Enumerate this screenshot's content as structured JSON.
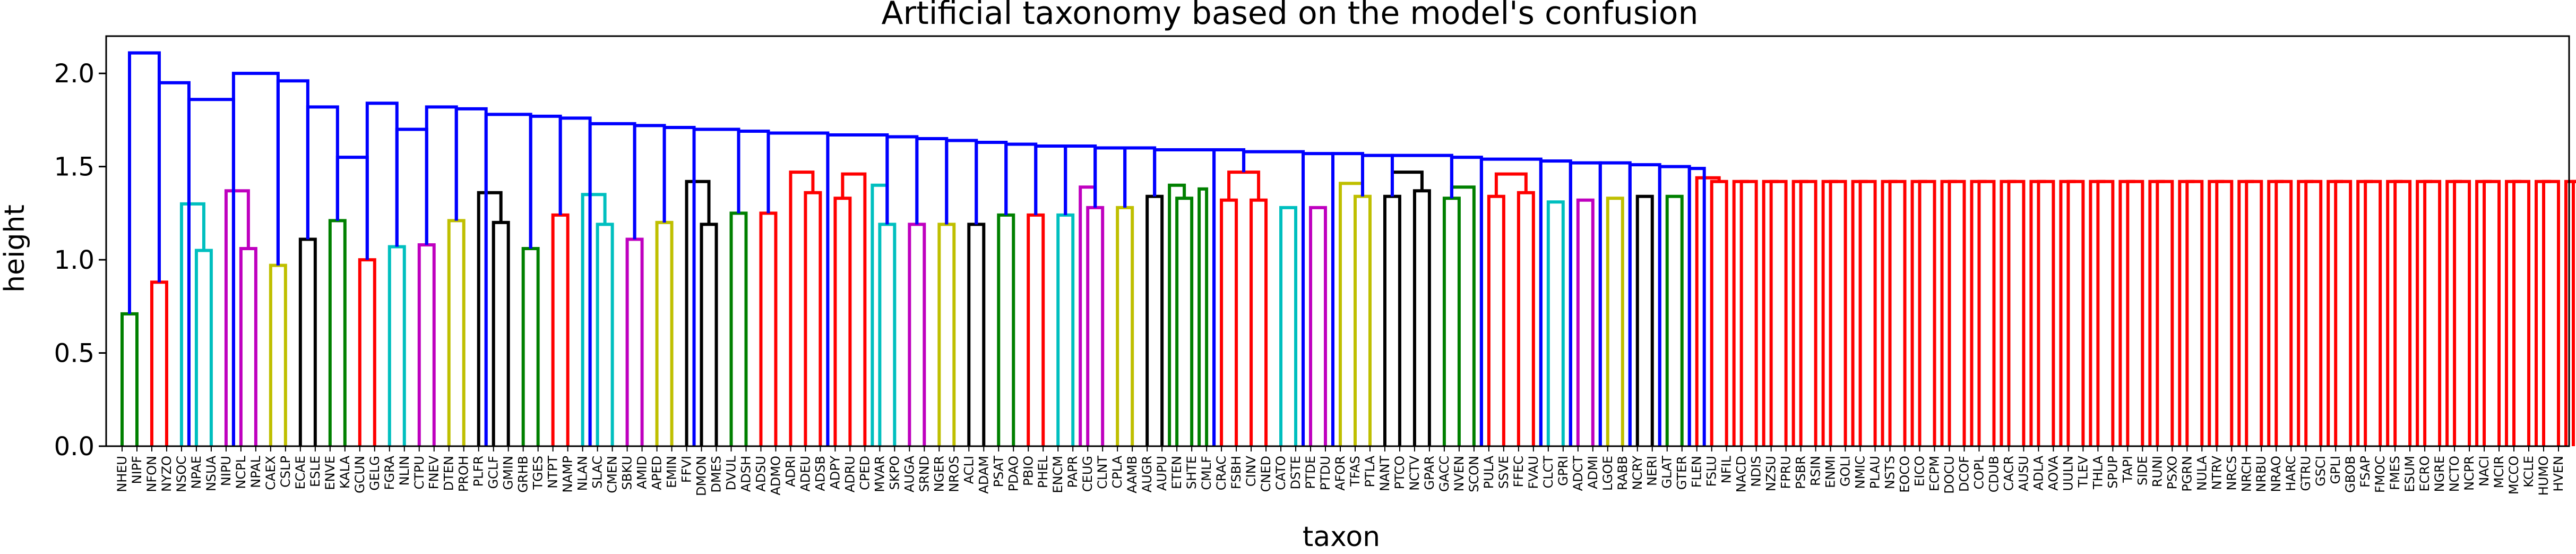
{
  "chart_data": {
    "type": "dendrogram",
    "title": "Artificial taxonomy based on the model's confusion",
    "xlabel": "taxon",
    "ylabel": "height",
    "ylim": [
      0,
      2.2
    ],
    "yticks": [
      "0.0",
      "0.5",
      "1.0",
      "1.5",
      "2.0"
    ],
    "colors": {
      "above_threshold": "#0000ff",
      "clusters": [
        "#008000",
        "#ff0000",
        "#00bfbf",
        "#bf00bf",
        "#bfbf00",
        "#000000"
      ]
    },
    "leaves": [
      "NHEU",
      "NIPF",
      "NFON",
      "NYZO",
      "NSOC",
      "NPAE",
      "NSUA",
      "NIPU",
      "NCPL",
      "NPAL",
      "CAEX",
      "CSLP",
      "ECAE",
      "ESLE",
      "ENVE",
      "KALA",
      "GCUN",
      "GELG",
      "FGRA",
      "NLIN",
      "CTPU",
      "FNEV",
      "DTEN",
      "PROH",
      "PLFR",
      "GCLF",
      "GMIN",
      "GRHB",
      "TGES",
      "NTPT",
      "NAMP",
      "NLAN",
      "SLAC",
      "CMEN",
      "SBKU",
      "AMID",
      "APED",
      "EMIN",
      "FFVI",
      "DMON",
      "DMES",
      "DVUL",
      "ADSH",
      "ADSU",
      "ADMO",
      "ADRI",
      "ADEU",
      "ADSB",
      "ADPY",
      "ADRU",
      "CPED",
      "MVAR",
      "SKPO",
      "AUGA",
      "SRND",
      "NGER",
      "NROS",
      "ACLI",
      "ADAM",
      "PSAT",
      "PDAO",
      "PBIO",
      "PHEL",
      "ENCM",
      "PAPR",
      "CEUG",
      "CLNT",
      "CPLA",
      "AAMB",
      "AUGR",
      "AUPU",
      "ETEN",
      "SHTE",
      "CMLF",
      "CRAC",
      "FSBH",
      "CINV",
      "CNED",
      "CATO",
      "DSTE",
      "PTDE",
      "PTDU",
      "AFOR",
      "TFAS",
      "PTLA",
      "NANT",
      "PTCO",
      "NCTV",
      "GPAR",
      "GACC",
      "NVEN",
      "SCON",
      "PULA",
      "SSVE",
      "FFEC",
      "FVAU",
      "CLCT",
      "GPRI",
      "ADCT",
      "ADMI",
      "LGOE",
      "RABB",
      "NCRY",
      "NERI",
      "GLAT",
      "GTER",
      "FLEN",
      "FSLU",
      "NFIL",
      "NACD",
      "NDIS",
      "NZSU",
      "FPRU",
      "PSBR",
      "RSIN",
      "ENMI",
      "GOLI",
      "NMIC",
      "PLAU",
      "NSTS",
      "EOCO",
      "EICO",
      "ECPM",
      "DOCU",
      "DCOF",
      "COPL",
      "CDUB",
      "CACR",
      "AUSU",
      "ADLA",
      "AOVA",
      "UULN",
      "TLEV",
      "THLA",
      "SPUP",
      "TAPI",
      "SIDE",
      "RUNI",
      "PSXO",
      "PGRN",
      "NULA",
      "NTRV",
      "NRCS",
      "NRCH",
      "NRBU",
      "NRAO",
      "HARC",
      "GTRU",
      "GSCI",
      "GPLI",
      "GBOB",
      "FSAP",
      "FMOC",
      "FMES",
      "ESUM",
      "ECRO",
      "NGRE",
      "NCTO",
      "NCPR",
      "NACI",
      "MCIR",
      "MCCO",
      "KCLE",
      "HUMO",
      "HVEN"
    ],
    "links": [
      {
        "l": 0,
        "r": 1,
        "h": 0.71,
        "c": 0
      },
      {
        "l": 2,
        "r": 3,
        "h": 0.88,
        "c": 1
      },
      {
        "l": 5,
        "r": 6,
        "h": 1.05,
        "c": 2
      },
      {
        "l": 4,
        "r": 5.5,
        "h": 1.3,
        "c": 2
      },
      {
        "l": 8,
        "r": 9,
        "h": 1.06,
        "c": 3
      },
      {
        "l": 7,
        "r": 8.5,
        "h": 1.37,
        "c": 3
      },
      {
        "l": 10,
        "r": 11,
        "h": 0.97,
        "c": 4
      },
      {
        "l": 12,
        "r": 13,
        "h": 1.11,
        "c": 5
      },
      {
        "l": 14,
        "r": 15,
        "h": 1.21,
        "c": 0
      },
      {
        "l": 16,
        "r": 17,
        "h": 1.0,
        "c": 1
      },
      {
        "l": 18,
        "r": 19,
        "h": 1.07,
        "c": 2
      },
      {
        "l": 20,
        "r": 21,
        "h": 1.08,
        "c": 3
      },
      {
        "l": 22,
        "r": 23,
        "h": 1.21,
        "c": 4
      },
      {
        "l": 25,
        "r": 26,
        "h": 1.2,
        "c": 5
      },
      {
        "l": 24,
        "r": 25.5,
        "h": 1.36,
        "c": 5
      },
      {
        "l": 27,
        "r": 28,
        "h": 1.06,
        "c": 0
      },
      {
        "l": 29,
        "r": 30,
        "h": 1.24,
        "c": 1
      },
      {
        "l": 32,
        "r": 33,
        "h": 1.19,
        "c": 2
      },
      {
        "l": 31,
        "r": 32.5,
        "h": 1.35,
        "c": 2
      },
      {
        "l": 34,
        "r": 35,
        "h": 1.11,
        "c": 3
      },
      {
        "l": 36,
        "r": 37,
        "h": 1.2,
        "c": 4
      },
      {
        "l": 39,
        "r": 40,
        "h": 1.19,
        "c": 5
      },
      {
        "l": 38,
        "r": 39.5,
        "h": 1.42,
        "c": 5
      },
      {
        "l": 41,
        "r": 42,
        "h": 1.25,
        "c": 0
      },
      {
        "l": 43,
        "r": 44,
        "h": 1.25,
        "c": 1
      },
      {
        "l": 46,
        "r": 47,
        "h": 1.36,
        "c": 1
      },
      {
        "l": 45,
        "r": 46.5,
        "h": 1.47,
        "c": 1
      },
      {
        "l": 48,
        "r": 49,
        "h": 1.33,
        "c": 1
      },
      {
        "l": 48.5,
        "r": 50,
        "h": 1.46,
        "c": 1
      },
      {
        "l": 51,
        "r": 52,
        "h": 1.19,
        "c": 2
      },
      {
        "l": 50.5,
        "r": 51.5,
        "h": 1.4,
        "c": 2
      },
      {
        "l": 53,
        "r": 54,
        "h": 1.19,
        "c": 3
      },
      {
        "l": 55,
        "r": 56,
        "h": 1.19,
        "c": 4
      },
      {
        "l": 57,
        "r": 58,
        "h": 1.19,
        "c": 5
      },
      {
        "l": 59,
        "r": 60,
        "h": 1.24,
        "c": 0
      },
      {
        "l": 61,
        "r": 62,
        "h": 1.24,
        "c": 1
      },
      {
        "l": 63,
        "r": 64,
        "h": 1.24,
        "c": 2
      },
      {
        "l": 65,
        "r": 66,
        "h": 1.28,
        "c": 3
      },
      {
        "l": 64.5,
        "r": 65.5,
        "h": 1.39,
        "c": 3
      },
      {
        "l": 67,
        "r": 68,
        "h": 1.28,
        "c": 4
      },
      {
        "l": 69,
        "r": 70,
        "h": 1.34,
        "c": 5
      },
      {
        "l": 71,
        "r": 72,
        "h": 1.33,
        "c": 0
      },
      {
        "l": 72.5,
        "r": 73,
        "h": 1.38,
        "c": 0
      },
      {
        "l": 70.5,
        "r": 71.5,
        "h": 1.4,
        "c": 0
      },
      {
        "l": 74,
        "r": 75,
        "h": 1.32,
        "c": 1
      },
      {
        "l": 76,
        "r": 77,
        "h": 1.32,
        "c": 1
      },
      {
        "l": 74.5,
        "r": 76.5,
        "h": 1.47,
        "c": 1
      },
      {
        "l": 78,
        "r": 79,
        "h": 1.28,
        "c": 2
      },
      {
        "l": 80,
        "r": 81,
        "h": 1.28,
        "c": 3
      },
      {
        "l": 83,
        "r": 84,
        "h": 1.34,
        "c": 4
      },
      {
        "l": 82,
        "r": 83.5,
        "h": 1.41,
        "c": 4
      },
      {
        "l": 85,
        "r": 86,
        "h": 1.34,
        "c": 5
      },
      {
        "l": 87,
        "r": 88,
        "h": 1.37,
        "c": 5
      },
      {
        "l": 85.5,
        "r": 87.5,
        "h": 1.47,
        "c": 5
      },
      {
        "l": 89,
        "r": 90,
        "h": 1.33,
        "c": 0
      },
      {
        "l": 89.5,
        "r": 91,
        "h": 1.39,
        "c": 0
      },
      {
        "l": 92,
        "r": 93,
        "h": 1.34,
        "c": 1
      },
      {
        "l": 94,
        "r": 95,
        "h": 1.36,
        "c": 1
      },
      {
        "l": 92.5,
        "r": 94.5,
        "h": 1.46,
        "c": 1
      },
      {
        "l": 96,
        "r": 97,
        "h": 1.31,
        "c": 2
      },
      {
        "l": 98,
        "r": 99,
        "h": 1.32,
        "c": 3
      },
      {
        "l": 100,
        "r": 101,
        "h": 1.33,
        "c": 4
      },
      {
        "l": 102,
        "r": 103,
        "h": 1.34,
        "c": 5
      },
      {
        "l": 104,
        "r": 105,
        "h": 1.34,
        "c": 0
      },
      {
        "l": 107,
        "r": 108,
        "h": 1.42,
        "c": 1
      },
      {
        "l": 109,
        "r": 110,
        "h": 1.42,
        "c": 1
      },
      {
        "l": 108.5,
        "r": 109.5,
        "h": 1.42,
        "c": 1
      },
      {
        "l": 111,
        "r": 112,
        "h": 1.42,
        "c": 1
      },
      {
        "l": 110.5,
        "r": 111.5,
        "h": 1.42,
        "c": 1
      },
      {
        "l": 113,
        "r": 114,
        "h": 1.42,
        "c": 1
      },
      {
        "l": 112.5,
        "r": 113.5,
        "h": 1.42,
        "c": 1
      },
      {
        "l": 115,
        "r": 116,
        "h": 1.42,
        "c": 1
      },
      {
        "l": 114.5,
        "r": 115.5,
        "h": 1.42,
        "c": 1
      },
      {
        "l": 117,
        "r": 118,
        "h": 1.42,
        "c": 1
      },
      {
        "l": 116.5,
        "r": 117.5,
        "h": 1.42,
        "c": 1
      },
      {
        "l": 119,
        "r": 120,
        "h": 1.42,
        "c": 1
      },
      {
        "l": 118.5,
        "r": 119.5,
        "h": 1.42,
        "c": 1
      },
      {
        "l": 121,
        "r": 122,
        "h": 1.42,
        "c": 1
      },
      {
        "l": 120.5,
        "r": 121.5,
        "h": 1.42,
        "c": 1
      },
      {
        "l": 123,
        "r": 124,
        "h": 1.42,
        "c": 1
      },
      {
        "l": 122.5,
        "r": 123.5,
        "h": 1.42,
        "c": 1
      },
      {
        "l": 125,
        "r": 126,
        "h": 1.42,
        "c": 1
      },
      {
        "l": 124.5,
        "r": 125.5,
        "h": 1.42,
        "c": 1
      },
      {
        "l": 127,
        "r": 128,
        "h": 1.42,
        "c": 1
      },
      {
        "l": 126.5,
        "r": 127.5,
        "h": 1.42,
        "c": 1
      },
      {
        "l": 129,
        "r": 130,
        "h": 1.42,
        "c": 1
      },
      {
        "l": 128.5,
        "r": 129.5,
        "h": 1.42,
        "c": 1
      },
      {
        "l": 131,
        "r": 132,
        "h": 1.42,
        "c": 1
      },
      {
        "l": 130.5,
        "r": 131.5,
        "h": 1.42,
        "c": 1
      },
      {
        "l": 133,
        "r": 134,
        "h": 1.42,
        "c": 1
      },
      {
        "l": 132.5,
        "r": 133.5,
        "h": 1.42,
        "c": 1
      },
      {
        "l": 135,
        "r": 136,
        "h": 1.42,
        "c": 1
      },
      {
        "l": 134.5,
        "r": 135.5,
        "h": 1.42,
        "c": 1
      },
      {
        "l": 137,
        "r": 138,
        "h": 1.42,
        "c": 1
      },
      {
        "l": 136.5,
        "r": 137.5,
        "h": 1.42,
        "c": 1
      },
      {
        "l": 139,
        "r": 140,
        "h": 1.42,
        "c": 1
      },
      {
        "l": 138.5,
        "r": 139.5,
        "h": 1.42,
        "c": 1
      },
      {
        "l": 141,
        "r": 142,
        "h": 1.42,
        "c": 1
      },
      {
        "l": 140.5,
        "r": 141.5,
        "h": 1.42,
        "c": 1
      },
      {
        "l": 143,
        "r": 144,
        "h": 1.42,
        "c": 1
      },
      {
        "l": 142.5,
        "r": 143.5,
        "h": 1.42,
        "c": 1
      },
      {
        "l": 145,
        "r": 146,
        "h": 1.42,
        "c": 1
      },
      {
        "l": 144.5,
        "r": 145.5,
        "h": 1.42,
        "c": 1
      },
      {
        "l": 147,
        "r": 148,
        "h": 1.42,
        "c": 1
      },
      {
        "l": 146.5,
        "r": 147.5,
        "h": 1.42,
        "c": 1
      },
      {
        "l": 149,
        "r": 150,
        "h": 1.42,
        "c": 1
      },
      {
        "l": 148.5,
        "r": 149.5,
        "h": 1.42,
        "c": 1
      },
      {
        "l": 151,
        "r": 152,
        "h": 1.42,
        "c": 1
      },
      {
        "l": 150.5,
        "r": 151.5,
        "h": 1.42,
        "c": 1
      },
      {
        "l": 153,
        "r": 154,
        "h": 1.42,
        "c": 1
      },
      {
        "l": 152.5,
        "r": 153.5,
        "h": 1.42,
        "c": 1
      },
      {
        "l": 155,
        "r": 156,
        "h": 1.42,
        "c": 1
      },
      {
        "l": 154.5,
        "r": 155.5,
        "h": 1.42,
        "c": 1
      },
      {
        "l": 157,
        "r": 158,
        "h": 1.42,
        "c": 1
      },
      {
        "l": 156.5,
        "r": 157.5,
        "h": 1.42,
        "c": 1
      },
      {
        "l": 159,
        "r": 160,
        "h": 1.42,
        "c": 1
      },
      {
        "l": 158.5,
        "r": 159.5,
        "h": 1.42,
        "c": 1
      },
      {
        "l": 161,
        "r": 162,
        "h": 1.42,
        "c": 1
      },
      {
        "l": 160.5,
        "r": 161.5,
        "h": 1.42,
        "c": 1
      },
      {
        "l": 163,
        "r": 164,
        "h": 1.42,
        "c": 1
      },
      {
        "l": 162.5,
        "r": 163.5,
        "h": 1.42,
        "c": 1
      },
      {
        "l": 165,
        "r": 166,
        "h": 1.42,
        "c": 1
      },
      {
        "l": 164.5,
        "r": 165.5,
        "h": 1.42,
        "c": 1
      },
      {
        "l": 106,
        "r": 107.5,
        "h": 1.44,
        "c": 1
      },
      {
        "l": 105.5,
        "r": 106.5,
        "h": 1.49,
        "c": -1
      },
      {
        "l": 103.5,
        "r": 105.5,
        "h": 1.5,
        "c": -1
      },
      {
        "l": 101.5,
        "r": 103.5,
        "h": 1.51,
        "c": -1
      },
      {
        "l": 99.5,
        "r": 101.5,
        "h": 1.52,
        "c": -1
      },
      {
        "l": 97.5,
        "r": 99.5,
        "h": 1.52,
        "c": -1
      },
      {
        "l": 95.5,
        "r": 97.5,
        "h": 1.53,
        "c": -1
      },
      {
        "l": 91.5,
        "r": 95.5,
        "h": 1.54,
        "c": -1
      },
      {
        "l": 89.5,
        "r": 91.5,
        "h": 1.55,
        "c": -1
      },
      {
        "l": 85.5,
        "r": 89.5,
        "h": 1.56,
        "c": -1
      },
      {
        "l": 83.5,
        "r": 85.5,
        "h": 1.56,
        "c": -1
      },
      {
        "l": 81.5,
        "r": 83.5,
        "h": 1.57,
        "c": -1
      },
      {
        "l": 79.5,
        "r": 81.5,
        "h": 1.57,
        "c": -1
      },
      {
        "l": 75.5,
        "r": 79.5,
        "h": 1.58,
        "c": -1
      },
      {
        "l": 73.5,
        "r": 75.5,
        "h": 1.59,
        "c": -1
      },
      {
        "l": 69.5,
        "r": 73.5,
        "h": 1.59,
        "c": -1
      },
      {
        "l": 67.5,
        "r": 69.5,
        "h": 1.6,
        "c": -1
      },
      {
        "l": 65.5,
        "r": 67.5,
        "h": 1.6,
        "c": -1
      },
      {
        "l": 63.5,
        "r": 65.5,
        "h": 1.61,
        "c": -1
      },
      {
        "l": 61.5,
        "r": 63.5,
        "h": 1.61,
        "c": -1
      },
      {
        "l": 59.5,
        "r": 61.5,
        "h": 1.62,
        "c": -1
      },
      {
        "l": 57.5,
        "r": 59.5,
        "h": 1.63,
        "c": -1
      },
      {
        "l": 55.5,
        "r": 57.5,
        "h": 1.64,
        "c": -1
      },
      {
        "l": 53.5,
        "r": 55.5,
        "h": 1.65,
        "c": -1
      },
      {
        "l": 51.5,
        "r": 53.5,
        "h": 1.66,
        "c": -1
      },
      {
        "l": 47.5,
        "r": 51.5,
        "h": 1.67,
        "c": -1
      },
      {
        "l": 43.5,
        "r": 47.5,
        "h": 1.68,
        "c": -1
      },
      {
        "l": 41.5,
        "r": 43.5,
        "h": 1.69,
        "c": -1
      },
      {
        "l": 38.5,
        "r": 41.5,
        "h": 1.7,
        "c": -1
      },
      {
        "l": 36.5,
        "r": 38.5,
        "h": 1.71,
        "c": -1
      },
      {
        "l": 34.5,
        "r": 36.5,
        "h": 1.72,
        "c": -1
      },
      {
        "l": 31.5,
        "r": 34.5,
        "h": 1.73,
        "c": -1
      },
      {
        "l": 29.5,
        "r": 31.5,
        "h": 1.76,
        "c": -1
      },
      {
        "l": 27.5,
        "r": 29.5,
        "h": 1.77,
        "c": -1
      },
      {
        "l": 24.5,
        "r": 27.5,
        "h": 1.78,
        "c": -1
      },
      {
        "l": 22.5,
        "r": 24.5,
        "h": 1.81,
        "c": -1
      },
      {
        "l": 20.5,
        "r": 22.5,
        "h": 1.82,
        "c": -1
      },
      {
        "l": 18.5,
        "r": 20.5,
        "h": 1.7,
        "c": -1
      },
      {
        "l": 16.5,
        "r": 18.5,
        "h": 1.84,
        "c": -1
      },
      {
        "l": 14.5,
        "r": 16.5,
        "h": 1.55,
        "c": -1
      },
      {
        "l": 12.5,
        "r": 14.5,
        "h": 1.82,
        "c": -1
      },
      {
        "l": 10.5,
        "r": 12.5,
        "h": 1.96,
        "c": -1
      },
      {
        "l": 7.5,
        "r": 10.5,
        "h": 2.0,
        "c": -1
      },
      {
        "l": 4.5,
        "r": 7.5,
        "h": 1.86,
        "c": -1
      },
      {
        "l": 2.5,
        "r": 4.5,
        "h": 1.95,
        "c": -1
      },
      {
        "l": 0.5,
        "r": 2.5,
        "h": 2.11,
        "c": -1
      }
    ]
  }
}
